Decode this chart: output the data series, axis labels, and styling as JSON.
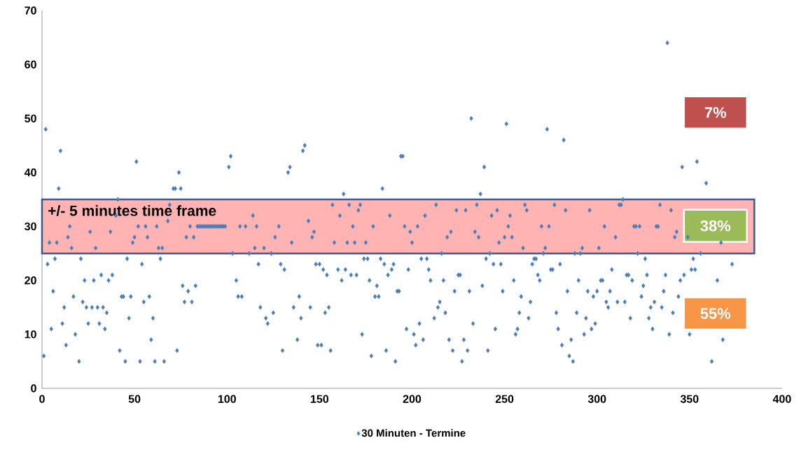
{
  "chart_data": {
    "type": "scatter",
    "marker": "diamond",
    "legend": "bottom",
    "xlim": [
      0,
      400
    ],
    "ylim": [
      0,
      70
    ],
    "xticks": [
      0,
      50,
      100,
      150,
      200,
      250,
      300,
      350,
      400
    ],
    "yticks": [
      0,
      10,
      20,
      30,
      40,
      50,
      60,
      70
    ],
    "bands": [
      {
        "axis": "y",
        "from": 25,
        "to": 35,
        "label": "+/- 5 minutes time frame",
        "color": "#ffb3b3"
      }
    ],
    "annotations": [
      "7%",
      "38%",
      "55%"
    ],
    "x": [
      1,
      2,
      3,
      4,
      5,
      6,
      7,
      8,
      9,
      10,
      11,
      12,
      13,
      14,
      15,
      16,
      17,
      18,
      20,
      21,
      22,
      23,
      24,
      25,
      26,
      27,
      28,
      29,
      30,
      31,
      32,
      33,
      34,
      35,
      36,
      37,
      38,
      40,
      41,
      42,
      43,
      44,
      45,
      46,
      47,
      48,
      49,
      50,
      51,
      52,
      53,
      54,
      55,
      56,
      57,
      58,
      59,
      60,
      61,
      62,
      63,
      64,
      65,
      66,
      68,
      69,
      71,
      72,
      73,
      74,
      75,
      76,
      77,
      78,
      79,
      80,
      81,
      82,
      83,
      84,
      85,
      86,
      87,
      88,
      89,
      90,
      91,
      92,
      93,
      94,
      95,
      96,
      97,
      98,
      99,
      101,
      102,
      103,
      105,
      106,
      107,
      108,
      110,
      112,
      114,
      115,
      116,
      117,
      118,
      120,
      121,
      122,
      124,
      125,
      126,
      128,
      129,
      130,
      131,
      133,
      134,
      135,
      136,
      138,
      139,
      140,
      141,
      142,
      144,
      145,
      146,
      147,
      148,
      149,
      150,
      151,
      152,
      153,
      154,
      155,
      156,
      157,
      158,
      160,
      161,
      162,
      163,
      164,
      165,
      166,
      167,
      168,
      169,
      170,
      171,
      172,
      173,
      174,
      175,
      176,
      177,
      178,
      179,
      180,
      181,
      182,
      183,
      184,
      185,
      186,
      187,
      188,
      189,
      190,
      191,
      192,
      193,
      194,
      195,
      196,
      197,
      198,
      199,
      200,
      201,
      202,
      203,
      204,
      205,
      206,
      207,
      208,
      209,
      210,
      212,
      213,
      214,
      215,
      216,
      217,
      218,
      219,
      220,
      221,
      222,
      223,
      224,
      225,
      226,
      227,
      228,
      229,
      230,
      231,
      232,
      233,
      234,
      235,
      236,
      237,
      238,
      239,
      240,
      241,
      242,
      243,
      244,
      245,
      246,
      247,
      248,
      249,
      250,
      251,
      252,
      253,
      254,
      255,
      256,
      257,
      258,
      259,
      260,
      261,
      262,
      263,
      264,
      265,
      266,
      267,
      268,
      269,
      270,
      271,
      272,
      273,
      274,
      275,
      276,
      277,
      278,
      279,
      280,
      281,
      282,
      283,
      284,
      285,
      286,
      287,
      288,
      289,
      290,
      291,
      292,
      293,
      294,
      295,
      296,
      297,
      298,
      299,
      300,
      301,
      302,
      303,
      304,
      305,
      306,
      307,
      308,
      310,
      311,
      312,
      313,
      314,
      315,
      316,
      317,
      318,
      319,
      320,
      321,
      322,
      323,
      324,
      325,
      326,
      327,
      328,
      329,
      330,
      331,
      332,
      333,
      334,
      335,
      336,
      337,
      338,
      339,
      340,
      341,
      342,
      343,
      344,
      345,
      346,
      347,
      349,
      350,
      351,
      352,
      353,
      354,
      356,
      359,
      362,
      365,
      367,
      368,
      373
    ],
    "series": [
      {
        "name": "30 Minuten - Termine",
        "color": "#4a7ebb",
        "values": [
          6,
          48,
          23,
          27,
          11,
          18,
          24,
          27,
          37,
          44,
          12,
          15,
          8,
          28,
          30,
          26,
          17,
          10,
          5,
          24,
          16,
          20,
          15,
          12,
          29,
          15,
          20,
          26,
          15,
          12,
          21,
          15,
          11,
          14,
          20,
          29,
          21,
          32,
          35,
          7,
          17,
          17,
          5,
          24,
          13,
          17,
          27,
          28,
          42,
          30,
          5,
          23,
          16,
          30,
          28,
          17,
          9,
          13,
          5,
          30,
          26,
          24,
          26,
          5,
          31,
          34,
          37,
          37,
          7,
          40,
          37,
          19,
          16,
          28,
          18,
          30,
          16,
          28,
          19,
          30,
          30,
          30,
          30,
          30,
          30,
          30,
          30,
          30,
          30,
          30,
          30,
          30,
          30,
          30,
          30,
          41,
          43,
          25,
          20,
          17,
          30,
          17,
          30,
          25,
          32,
          26,
          30,
          23,
          15,
          26,
          13,
          12,
          25,
          14,
          28,
          30,
          23,
          7,
          22,
          40,
          41,
          27,
          15,
          9,
          17,
          13,
          44,
          45,
          31,
          15,
          28,
          29,
          23,
          8,
          23,
          8,
          22,
          14,
          21,
          15,
          7,
          34,
          27,
          22,
          32,
          20,
          36,
          22,
          27,
          34,
          21,
          30,
          27,
          21,
          33,
          34,
          10,
          24,
          27,
          24,
          20,
          6,
          30,
          17,
          19,
          17,
          24,
          37,
          23,
          7,
          21,
          32,
          22,
          23,
          5,
          18,
          18,
          43,
          43,
          30,
          11,
          22,
          29,
          27,
          10,
          8,
          30,
          12,
          24,
          9,
          32,
          24,
          22,
          20,
          13,
          34,
          15,
          16,
          25,
          20,
          14,
          28,
          9,
          29,
          7,
          18,
          33,
          21,
          21,
          5,
          9,
          33,
          7,
          18,
          50,
          12,
          29,
          34,
          28,
          36,
          19,
          41,
          24,
          7,
          25,
          32,
          23,
          11,
          33,
          27,
          23,
          18,
          28,
          49,
          30,
          32,
          28,
          20,
          10,
          11,
          14,
          17,
          26,
          34,
          33,
          13,
          16,
          23,
          24,
          24,
          21,
          20,
          30,
          25,
          26,
          48,
          30,
          22,
          22,
          34,
          14,
          11,
          23,
          8,
          46,
          33,
          18,
          6,
          9,
          5,
          25,
          14,
          20,
          25,
          26,
          10,
          13,
          18,
          33,
          11,
          17,
          12,
          18,
          26,
          20,
          20,
          30,
          16,
          15,
          18,
          22,
          28,
          16,
          34,
          34,
          35,
          16,
          21,
          21,
          13,
          20,
          30,
          30,
          25,
          30,
          17,
          19,
          24,
          21,
          13,
          15,
          11,
          16,
          30,
          30,
          34,
          15,
          18,
          21,
          64,
          10,
          33,
          14,
          28,
          29,
          17,
          20,
          41,
          21,
          28,
          10,
          22,
          24,
          22,
          42,
          25,
          38,
          5,
          20,
          27,
          9,
          23
        ]
      }
    ]
  }
}
